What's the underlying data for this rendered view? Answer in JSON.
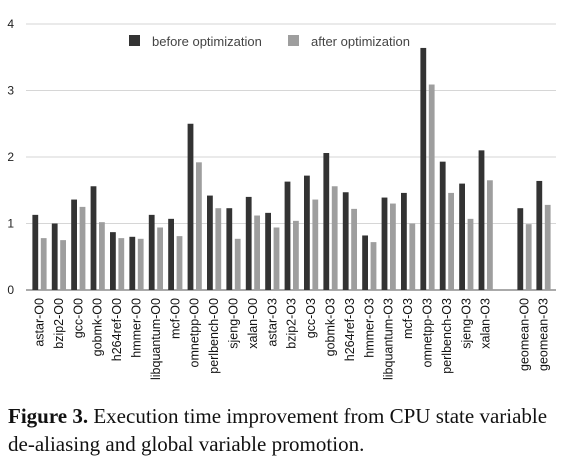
{
  "chart_data": {
    "type": "bar",
    "title": "",
    "xlabel": "",
    "ylabel": "",
    "ylim": [
      0,
      4
    ],
    "yticks": [
      "0",
      "1",
      "2",
      "3",
      "4"
    ],
    "grid": "horizontal",
    "legend_position": "top",
    "categories": [
      "astar-O0",
      "bzip2-O0",
      "gcc-O0",
      "gobmk-O0",
      "h264ref-O0",
      "hmmer-O0",
      "libquantum-O0",
      "mcf-O0",
      "omnetpp-O0",
      "perlbench-O0",
      "sjeng-O0",
      "xalan-O0",
      "astar-O3",
      "bzip2-O3",
      "gcc-O3",
      "gobmk-O3",
      "h264ref-O3",
      "hmmer-O3",
      "libquantum-O3",
      "mcf-O3",
      "omnetpp-O3",
      "perlbench-O3",
      "sjeng-O3",
      "xalan-O3",
      "geomean-O0",
      "geomean-O3"
    ],
    "series": [
      {
        "name": "before optimization",
        "color": "#333333",
        "values": [
          1.13,
          1.0,
          1.36,
          1.56,
          0.87,
          0.8,
          1.13,
          1.07,
          2.5,
          1.42,
          1.23,
          1.4,
          1.16,
          1.63,
          1.72,
          2.06,
          1.47,
          0.82,
          1.39,
          1.46,
          3.64,
          1.93,
          1.6,
          2.1,
          1.23,
          1.64
        ]
      },
      {
        "name": "after optimization",
        "color": "#9e9e9e",
        "values": [
          0.78,
          0.75,
          1.25,
          1.02,
          0.78,
          0.77,
          0.94,
          0.81,
          1.92,
          1.23,
          0.77,
          1.12,
          0.94,
          1.04,
          1.36,
          1.56,
          1.22,
          0.72,
          1.3,
          1.0,
          3.09,
          1.46,
          1.07,
          1.65,
          0.99,
          1.28
        ]
      }
    ]
  },
  "caption": {
    "figure_label": "Figure 3.",
    "text": " Execution time improvement from CPU state variable de-aliasing and global variable promotion."
  }
}
